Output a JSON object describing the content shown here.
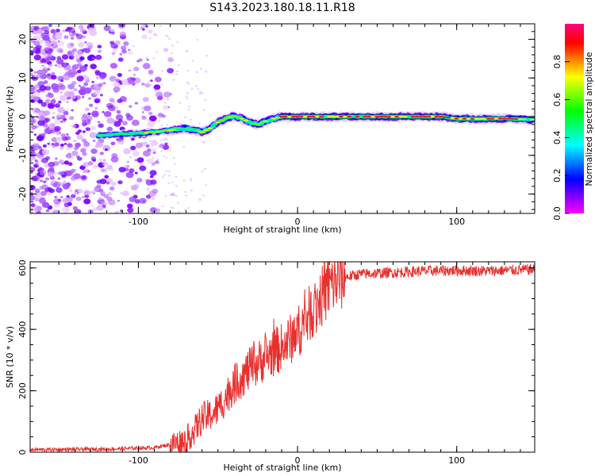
{
  "title": "S143.2023.180.18.11.R18",
  "chart_data": [
    {
      "type": "heatmap",
      "xlabel": "Height of straight line (km)",
      "ylabel": "Frequency (Hz)",
      "xlim": [
        -168,
        149
      ],
      "ylim": [
        -25,
        24
      ],
      "x_ticks": [
        "-100",
        "0",
        "100"
      ],
      "y_ticks": [
        "-20",
        "-10",
        "0",
        "10",
        "20"
      ],
      "colorbar": {
        "label": "Normalized spectral amplitude",
        "range": [
          0,
          1
        ],
        "ticks": [
          "0.0",
          "0.2",
          "0.4",
          "0.6",
          "0.8"
        ],
        "colors": [
          "#ff00ff",
          "#8000ff",
          "#0000ff",
          "#0080ff",
          "#00ffff",
          "#00ff80",
          "#00ff00",
          "#80ff00",
          "#ffff00",
          "#ff8000",
          "#ff0000",
          "#ff0080"
        ]
      },
      "ridge": {
        "description_points_x": [
          -125,
          -110,
          -100,
          -90,
          -80,
          -70,
          -60,
          -55,
          -50,
          -45,
          -40,
          -35,
          -30,
          -25,
          -20,
          -15,
          -10,
          0,
          10,
          30,
          50,
          70,
          90,
          100,
          110,
          130,
          148
        ],
        "description_points_y": [
          -4.8,
          -4.5,
          -4.3,
          -4,
          -3.5,
          -3,
          -4,
          -3,
          -1.5,
          -0.5,
          0.2,
          -0.5,
          -1.5,
          -2,
          -1.2,
          -0.5,
          0,
          0,
          0,
          0,
          0,
          0,
          0,
          -0.5,
          -0.6,
          -0.5,
          -0.8
        ]
      }
    },
    {
      "type": "line",
      "xlabel": "Height of straight line (km)",
      "ylabel": "SNR (10 * v/v)",
      "xlim": [
        -168,
        149
      ],
      "ylim": [
        0,
        620
      ],
      "x_ticks": [
        "-100",
        "0",
        "100"
      ],
      "y_ticks": [
        "0",
        "200",
        "400",
        "600"
      ],
      "series": [
        {
          "color": "#e8302e",
          "x": [
            -168,
            -120,
            -90,
            -80,
            -70,
            -65,
            -60,
            -55,
            -50,
            -45,
            -40,
            -30,
            -20,
            -10,
            0,
            10,
            20,
            30,
            40,
            60,
            80,
            100,
            120,
            149
          ],
          "values": [
            8,
            10,
            15,
            25,
            40,
            70,
            110,
            120,
            140,
            180,
            220,
            270,
            310,
            340,
            390,
            470,
            540,
            570,
            580,
            585,
            590,
            592,
            590,
            595
          ]
        }
      ]
    }
  ]
}
